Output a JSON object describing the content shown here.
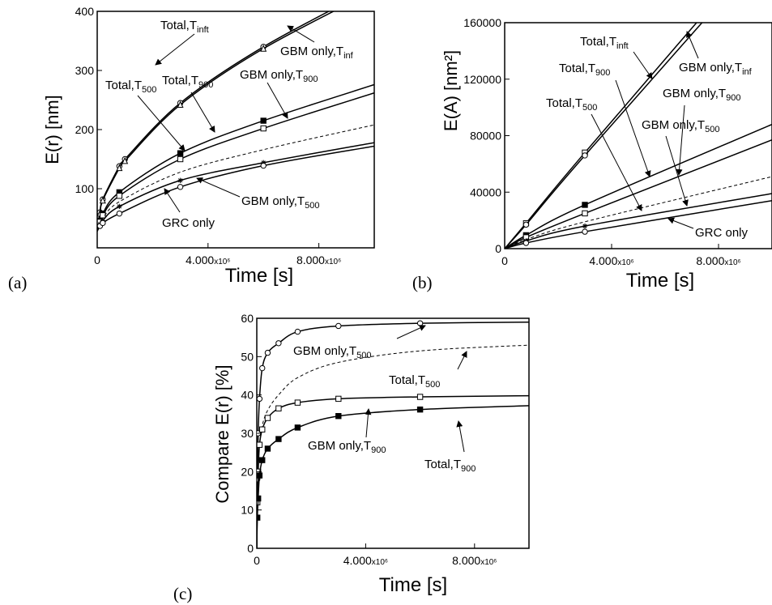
{
  "panels": [
    {
      "id": "a",
      "panel_label": "(a)",
      "ylabel": "E(r)   [nm]",
      "xlabel": "Time  [s]",
      "xlim": [
        0,
        10000000
      ],
      "ylim": [
        0,
        400
      ],
      "x_ticks": [
        {
          "value": 0,
          "label": "0"
        },
        {
          "value": 4000000,
          "label": "4.000x10⁶"
        },
        {
          "value": 8000000,
          "label": "8.000x10⁶"
        }
      ],
      "y_ticks": [
        {
          "value": 100,
          "label": "100"
        },
        {
          "value": 200,
          "label": "200"
        },
        {
          "value": 300,
          "label": "300"
        },
        {
          "value": 400,
          "label": "400"
        }
      ]
    },
    {
      "id": "b",
      "panel_label": "(b)",
      "ylabel": "E(A)  [nm²]",
      "xlabel": "Time  [s]",
      "xlim": [
        0,
        10000000
      ],
      "ylim": [
        0,
        160000
      ],
      "x_ticks": [
        {
          "value": 0,
          "label": "0"
        },
        {
          "value": 4000000,
          "label": "4.000x10⁶"
        },
        {
          "value": 8000000,
          "label": "8.000x10⁶"
        }
      ],
      "y_ticks": [
        {
          "value": 0,
          "label": "0"
        },
        {
          "value": 40000,
          "label": "40000"
        },
        {
          "value": 80000,
          "label": "80000"
        },
        {
          "value": 120000,
          "label": "120000"
        },
        {
          "value": 160000,
          "label": "160000"
        }
      ]
    },
    {
      "id": "c",
      "panel_label": "(c)",
      "ylabel": "Compare  E(r)  [%]",
      "xlabel": "Time  [s]",
      "xlim": [
        0,
        10000000
      ],
      "ylim": [
        0,
        60
      ],
      "x_ticks": [
        {
          "value": 0,
          "label": "0"
        },
        {
          "value": 4000000,
          "label": "4.000x10⁶"
        },
        {
          "value": 8000000,
          "label": "8.000x10⁶"
        }
      ],
      "y_ticks": [
        {
          "value": 0,
          "label": "0"
        },
        {
          "value": 10,
          "label": "10"
        },
        {
          "value": 20,
          "label": "20"
        },
        {
          "value": 30,
          "label": "30"
        },
        {
          "value": 40,
          "label": "40"
        },
        {
          "value": 50,
          "label": "50"
        },
        {
          "value": 60,
          "label": "60"
        }
      ]
    }
  ],
  "chart_data": [
    {
      "type": "line",
      "panel": "a",
      "xlabel": "Time  [s]",
      "ylabel": "E(r)   [nm]",
      "xlim": [
        0,
        10000000
      ],
      "ylim": [
        0,
        400
      ],
      "grid": false,
      "series": [
        {
          "name": "Total,T_inft",
          "style": "solid",
          "marker": "open-circle",
          "x": [
            0,
            100000,
            200000,
            800000,
            1000000,
            3000000,
            6000000,
            10000000
          ],
          "y": [
            30,
            60,
            82,
            138,
            150,
            245,
            340,
            440
          ]
        },
        {
          "name": "GBM only,T_inf",
          "style": "solid",
          "marker": "open-triangle",
          "x": [
            0,
            100000,
            200000,
            800000,
            1000000,
            3000000,
            6000000,
            10000000
          ],
          "y": [
            29,
            58,
            80,
            135,
            147,
            242,
            337,
            435
          ]
        },
        {
          "name": "Total,T_900",
          "style": "solid",
          "marker": "filled-square",
          "x": [
            0,
            100000,
            200000,
            800000,
            3000000,
            6000000,
            10000000
          ],
          "y": [
            30,
            46,
            58,
            94,
            160,
            215,
            276
          ]
        },
        {
          "name": "GBM only,T_900",
          "style": "solid",
          "marker": "open-square",
          "x": [
            0,
            100000,
            200000,
            800000,
            3000000,
            6000000,
            10000000
          ],
          "y": [
            29,
            44,
            55,
            88,
            150,
            202,
            262
          ]
        },
        {
          "name": "Total,T_500",
          "style": "dashed",
          "marker": "none",
          "x": [
            0,
            100000,
            200000,
            800000,
            3000000,
            6000000,
            10000000
          ],
          "y": [
            29,
            42,
            50,
            78,
            128,
            166,
            208
          ]
        },
        {
          "name": "GBM only,T_500",
          "style": "solid",
          "marker": "star",
          "x": [
            0,
            100000,
            200000,
            800000,
            3000000,
            6000000,
            10000000
          ],
          "y": [
            28,
            40,
            46,
            70,
            114,
            144,
            178
          ]
        },
        {
          "name": "GRC only",
          "style": "solid",
          "marker": "open-circle",
          "x": [
            0,
            100000,
            200000,
            800000,
            3000000,
            6000000,
            10000000
          ],
          "y": [
            28,
            37,
            42,
            58,
            103,
            139,
            172
          ]
        }
      ],
      "annotations": [
        {
          "text": "Total,",
          "sub": "inft",
          "tpre": "T"
        },
        {
          "text": "Total,",
          "sub": "900",
          "tpre": "T"
        },
        {
          "text": "Total,",
          "sub": "500",
          "tpre": "T"
        },
        {
          "text": "GBM only,",
          "sub": "inf",
          "tpre": "T"
        },
        {
          "text": "GBM only,",
          "sub": "900",
          "tpre": "T"
        },
        {
          "text": "GBM only,",
          "sub": "500",
          "tpre": "T"
        },
        {
          "text": "GRC only",
          "sub": "",
          "tpre": ""
        }
      ]
    },
    {
      "type": "line",
      "panel": "b",
      "xlabel": "Time  [s]",
      "ylabel": "E(A)  [nm²]",
      "xlim": [
        0,
        10000000
      ],
      "ylim": [
        0,
        160000
      ],
      "grid": false,
      "series": [
        {
          "name": "Total,T_inft",
          "style": "solid",
          "marker": "open-square",
          "x": [
            0,
            800000,
            3000000,
            10000000
          ],
          "y": [
            0,
            18000,
            68000,
            222000
          ]
        },
        {
          "name": "GBM only,T_inf",
          "style": "solid",
          "marker": "open-circle",
          "x": [
            0,
            800000,
            3000000,
            10000000
          ],
          "y": [
            0,
            17000,
            66000,
            216000
          ]
        },
        {
          "name": "Total,T_900",
          "style": "solid",
          "marker": "filled-square",
          "x": [
            0,
            800000,
            3000000,
            10000000
          ],
          "y": [
            0,
            9500,
            31000,
            88000
          ]
        },
        {
          "name": "GBM only,T_900",
          "style": "solid",
          "marker": "open-square",
          "x": [
            0,
            800000,
            3000000,
            10000000
          ],
          "y": [
            0,
            8000,
            25000,
            77000
          ]
        },
        {
          "name": "Total,T_500",
          "style": "dashed",
          "marker": "none",
          "x": [
            0,
            800000,
            3000000,
            10000000
          ],
          "y": [
            0,
            6500,
            19000,
            51000
          ]
        },
        {
          "name": "GBM only,T_500",
          "style": "solid",
          "marker": "star",
          "x": [
            0,
            800000,
            3000000,
            10000000
          ],
          "y": [
            0,
            5500,
            16000,
            39000
          ]
        },
        {
          "name": "GRC only",
          "style": "solid",
          "marker": "open-circle",
          "x": [
            0,
            800000,
            3000000,
            10000000
          ],
          "y": [
            0,
            4000,
            12000,
            34000
          ]
        }
      ],
      "annotations": [
        {
          "text": "Total,",
          "sub": "inft",
          "tpre": "T"
        },
        {
          "text": "GBM only,",
          "sub": "inf",
          "tpre": "T"
        },
        {
          "text": "Total,",
          "sub": "900",
          "tpre": "T"
        },
        {
          "text": "GBM only,",
          "sub": "900",
          "tpre": "T"
        },
        {
          "text": "Total,",
          "sub": "500",
          "tpre": "T"
        },
        {
          "text": "GBM only,",
          "sub": "500",
          "tpre": "T"
        },
        {
          "text": "GRC only",
          "sub": "",
          "tpre": ""
        }
      ]
    },
    {
      "type": "line",
      "panel": "c",
      "xlabel": "Time  [s]",
      "ylabel": "Compare  E(r)  [%]",
      "xlim": [
        0,
        10000000
      ],
      "ylim": [
        0,
        60
      ],
      "grid": false,
      "series": [
        {
          "name": "GBM only,T_500",
          "style": "solid",
          "marker": "open-circle",
          "x": [
            0,
            20000,
            50000,
            100000,
            200000,
            400000,
            800000,
            1500000,
            3000000,
            6000000,
            10000000
          ],
          "y": [
            0,
            18,
            30,
            39,
            47,
            51,
            53.5,
            56.5,
            58,
            58.7,
            59
          ]
        },
        {
          "name": "Total,T_500",
          "style": "dashed",
          "marker": "none",
          "x": [
            0,
            20000,
            50000,
            100000,
            200000,
            400000,
            800000,
            1500000,
            3000000,
            6000000,
            10000000
          ],
          "y": [
            0,
            12,
            20,
            27,
            32,
            36,
            40,
            44.5,
            48.5,
            51.5,
            53
          ]
        },
        {
          "name": "GBM only,T_900",
          "style": "solid",
          "marker": "open-square",
          "x": [
            0,
            20000,
            50000,
            100000,
            200000,
            400000,
            800000,
            1500000,
            3000000,
            6000000,
            10000000
          ],
          "y": [
            0,
            12,
            20,
            27,
            31,
            34,
            36.5,
            38,
            39,
            39.5,
            39.8
          ]
        },
        {
          "name": "Total,T_900",
          "style": "solid",
          "marker": "filled-square",
          "x": [
            0,
            20000,
            50000,
            100000,
            200000,
            400000,
            800000,
            1500000,
            3000000,
            6000000,
            10000000
          ],
          "y": [
            0,
            8,
            13,
            19,
            23,
            26,
            28.5,
            31.5,
            34.5,
            36.2,
            37.2
          ]
        }
      ],
      "annotations": [
        {
          "text": "GBM only,",
          "sub": "500",
          "tpre": "T"
        },
        {
          "text": "Total,",
          "sub": "500",
          "tpre": "T"
        },
        {
          "text": "GBM only,",
          "sub": "900",
          "tpre": "T"
        },
        {
          "text": "Total,",
          "sub": "900",
          "tpre": "T"
        }
      ]
    }
  ]
}
